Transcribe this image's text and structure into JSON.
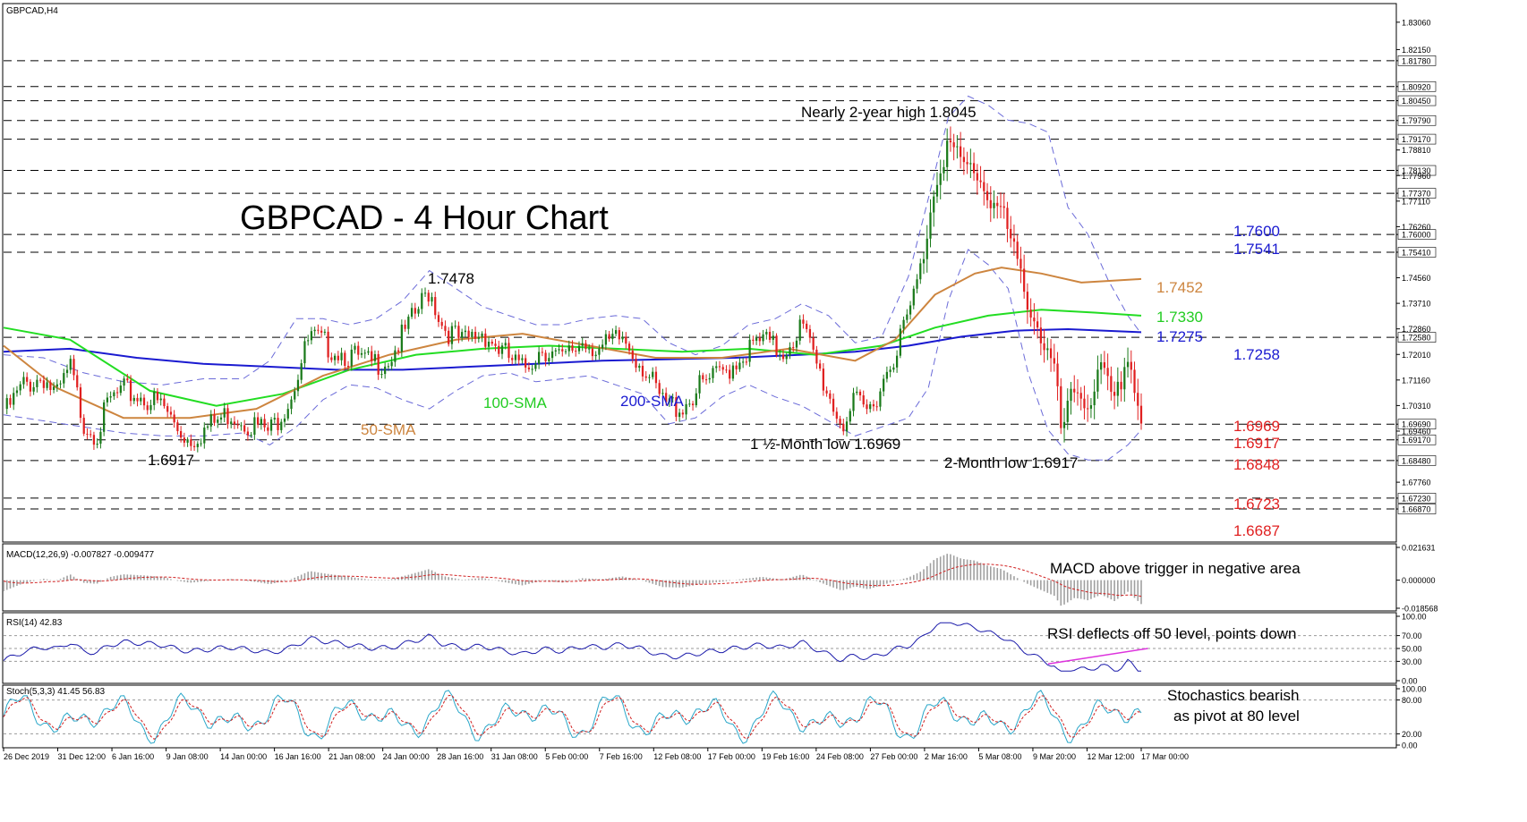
{
  "colors": {
    "bull": "#1a7a1a",
    "bear": "#e02020",
    "sma50": "#cd853f",
    "sma100": "#22dd22",
    "sma200": "#1a1ad0",
    "bands": "#6a6ad8",
    "macd_hist": "#a0a0a0",
    "signal": "#d02020",
    "rsi": "#1a1aaa",
    "rsi_trend": "#dd33dd",
    "stoch_main": "#2aa7c9",
    "stoch_signal": "#d02020",
    "level_blue": "#1a1ad0",
    "level_orange": "#cd853f",
    "level_green": "#22cc22",
    "level_red": "#e02020"
  },
  "chart_data": [
    {
      "type": "candlestick",
      "symbol_label": "GBPCAD,H4",
      "title": "GBPCAD - 4 Hour Chart",
      "ylim": [
        1.658,
        1.8365
      ],
      "y_ticks": [
        "1.83060",
        "1.82150",
        "1.81780",
        "1.80920",
        "1.80450",
        "1.79790",
        "1.79170",
        "1.78810",
        "1.78130",
        "1.77960",
        "1.77370",
        "1.77110",
        "1.76260",
        "1.76000",
        "1.75410",
        "1.74560",
        "1.73710",
        "1.72860",
        "1.72580",
        "1.72010",
        "1.71160",
        "1.70310",
        "1.69690",
        "1.69460",
        "1.69170",
        "1.68480",
        "1.67760",
        "1.67230",
        "1.66870"
      ],
      "highlighted_ticks": [
        "1.81780",
        "1.80920",
        "1.80450",
        "1.79790",
        "1.79170",
        "1.78130",
        "1.77370",
        "1.76000",
        "1.75410",
        "1.72580",
        "1.69690",
        "1.69170",
        "1.68480",
        "1.67230",
        "1.66870"
      ],
      "x_ticks": [
        "26 Dec 2019",
        "31 Dec 12:00",
        "6 Jan 16:00",
        "9 Jan 08:00",
        "14 Jan 00:00",
        "16 Jan 16:00",
        "21 Jan 08:00",
        "24 Jan 00:00",
        "28 Jan 16:00",
        "31 Jan 08:00",
        "5 Feb 00:00",
        "7 Feb 16:00",
        "12 Feb 08:00",
        "17 Feb 00:00",
        "19 Feb 16:00",
        "24 Feb 08:00",
        "27 Feb 00:00",
        "2 Mar 16:00",
        "5 Mar 08:00",
        "9 Mar 20:00",
        "12 Mar 12:00",
        "17 Mar 00:00"
      ],
      "x_range": [
        "26 Dec 2019",
        "19 Mar 2020"
      ],
      "close_path": [
        [
          0,
          1.702
        ],
        [
          3,
          1.712
        ],
        [
          6,
          1.715
        ],
        [
          8,
          1.708
        ],
        [
          10,
          1.718
        ],
        [
          12,
          1.7
        ],
        [
          14,
          1.696
        ],
        [
          16,
          1.707
        ],
        [
          18,
          1.71
        ],
        [
          21,
          1.708
        ],
        [
          24,
          1.705
        ],
        [
          26,
          1.698
        ],
        [
          28,
          1.694
        ],
        [
          31,
          1.6985
        ],
        [
          34,
          1.703
        ],
        [
          37,
          1.6995
        ],
        [
          40,
          1.6965
        ],
        [
          43,
          1.708
        ],
        [
          46,
          1.728
        ],
        [
          49,
          1.725
        ],
        [
          52,
          1.722
        ],
        [
          55,
          1.719
        ],
        [
          58,
          1.721
        ],
        [
          61,
          1.732
        ],
        [
          64,
          1.744
        ],
        [
          66,
          1.732
        ],
        [
          69,
          1.726
        ],
        [
          72,
          1.73
        ],
        [
          75,
          1.723
        ],
        [
          78,
          1.717
        ],
        [
          81,
          1.725
        ],
        [
          84,
          1.72
        ],
        [
          87,
          1.727
        ],
        [
          90,
          1.724
        ],
        [
          93,
          1.728
        ],
        [
          96,
          1.719
        ],
        [
          99,
          1.706
        ],
        [
          102,
          1.705
        ],
        [
          105,
          1.712
        ],
        [
          108,
          1.716
        ],
        [
          111,
          1.722
        ],
        [
          114,
          1.727
        ],
        [
          117,
          1.723
        ],
        [
          120,
          1.732
        ],
        [
          122,
          1.72
        ],
        [
          124,
          1.709
        ],
        [
          126,
          1.699
        ],
        [
          128,
          1.706
        ],
        [
          130,
          1.703
        ],
        [
          133,
          1.718
        ],
        [
          136,
          1.735
        ],
        [
          138,
          1.752
        ],
        [
          140,
          1.78
        ],
        [
          142,
          1.793
        ],
        [
          144,
          1.785
        ],
        [
          146,
          1.784
        ],
        [
          148,
          1.775
        ],
        [
          150,
          1.77
        ],
        [
          152,
          1.755
        ],
        [
          154,
          1.74
        ],
        [
          156,
          1.728
        ],
        [
          158,
          1.716
        ],
        [
          159,
          1.696
        ],
        [
          161,
          1.711
        ],
        [
          163,
          1.706
        ],
        [
          165,
          1.717
        ],
        [
          167,
          1.705
        ],
        [
          169,
          1.723
        ],
        [
          171,
          1.7
        ]
      ],
      "sma50": [
        [
          0,
          1.723
        ],
        [
          8,
          1.709
        ],
        [
          18,
          1.699
        ],
        [
          28,
          1.699
        ],
        [
          38,
          1.702
        ],
        [
          48,
          1.713
        ],
        [
          58,
          1.72
        ],
        [
          68,
          1.725
        ],
        [
          78,
          1.727
        ],
        [
          88,
          1.723
        ],
        [
          98,
          1.719
        ],
        [
          108,
          1.719
        ],
        [
          118,
          1.722
        ],
        [
          128,
          1.718
        ],
        [
          134,
          1.725
        ],
        [
          140,
          1.74
        ],
        [
          146,
          1.747
        ],
        [
          150,
          1.749
        ],
        [
          156,
          1.747
        ],
        [
          162,
          1.744
        ],
        [
          171,
          1.7452
        ]
      ],
      "sma100": [
        [
          0,
          1.729
        ],
        [
          10,
          1.725
        ],
        [
          22,
          1.708
        ],
        [
          32,
          1.703
        ],
        [
          42,
          1.707
        ],
        [
          52,
          1.715
        ],
        [
          62,
          1.72
        ],
        [
          72,
          1.722
        ],
        [
          82,
          1.723
        ],
        [
          92,
          1.722
        ],
        [
          102,
          1.721
        ],
        [
          112,
          1.722
        ],
        [
          122,
          1.72
        ],
        [
          132,
          1.723
        ],
        [
          140,
          1.729
        ],
        [
          148,
          1.733
        ],
        [
          156,
          1.735
        ],
        [
          164,
          1.734
        ],
        [
          171,
          1.733
        ]
      ],
      "sma200": [
        [
          0,
          1.721
        ],
        [
          10,
          1.722
        ],
        [
          20,
          1.719
        ],
        [
          30,
          1.717
        ],
        [
          40,
          1.716
        ],
        [
          50,
          1.715
        ],
        [
          60,
          1.715
        ],
        [
          70,
          1.716
        ],
        [
          80,
          1.717
        ],
        [
          90,
          1.718
        ],
        [
          100,
          1.7185
        ],
        [
          110,
          1.719
        ],
        [
          120,
          1.72
        ],
        [
          128,
          1.721
        ],
        [
          136,
          1.723
        ],
        [
          144,
          1.726
        ],
        [
          152,
          1.728
        ],
        [
          160,
          1.7285
        ],
        [
          171,
          1.7275
        ]
      ],
      "band_upper": [
        [
          0,
          1.72
        ],
        [
          6,
          1.719
        ],
        [
          12,
          1.714
        ],
        [
          18,
          1.711
        ],
        [
          24,
          1.71
        ],
        [
          30,
          1.712
        ],
        [
          36,
          1.712
        ],
        [
          40,
          1.718
        ],
        [
          44,
          1.732
        ],
        [
          48,
          1.732
        ],
        [
          52,
          1.73
        ],
        [
          56,
          1.732
        ],
        [
          60,
          1.738
        ],
        [
          64,
          1.748
        ],
        [
          68,
          1.742
        ],
        [
          72,
          1.736
        ],
        [
          76,
          1.733
        ],
        [
          80,
          1.73
        ],
        [
          84,
          1.73
        ],
        [
          88,
          1.732
        ],
        [
          92,
          1.733
        ],
        [
          96,
          1.732
        ],
        [
          100,
          1.724
        ],
        [
          104,
          1.72
        ],
        [
          108,
          1.723
        ],
        [
          112,
          1.73
        ],
        [
          116,
          1.732
        ],
        [
          120,
          1.737
        ],
        [
          124,
          1.733
        ],
        [
          128,
          1.724
        ],
        [
          132,
          1.726
        ],
        [
          136,
          1.746
        ],
        [
          139,
          1.772
        ],
        [
          142,
          1.799
        ],
        [
          145,
          1.806
        ],
        [
          148,
          1.803
        ],
        [
          151,
          1.798
        ],
        [
          154,
          1.797
        ],
        [
          157,
          1.794
        ],
        [
          160,
          1.769
        ],
        [
          163,
          1.76
        ],
        [
          166,
          1.745
        ],
        [
          169,
          1.733
        ],
        [
          171,
          1.727
        ]
      ],
      "band_lower": [
        [
          0,
          1.7
        ],
        [
          6,
          1.698
        ],
        [
          12,
          1.696
        ],
        [
          18,
          1.694
        ],
        [
          24,
          1.693
        ],
        [
          30,
          1.693
        ],
        [
          36,
          1.694
        ],
        [
          40,
          1.69
        ],
        [
          44,
          1.696
        ],
        [
          48,
          1.705
        ],
        [
          52,
          1.71
        ],
        [
          56,
          1.709
        ],
        [
          60,
          1.705
        ],
        [
          64,
          1.702
        ],
        [
          68,
          1.708
        ],
        [
          72,
          1.713
        ],
        [
          76,
          1.714
        ],
        [
          80,
          1.711
        ],
        [
          84,
          1.712
        ],
        [
          88,
          1.713
        ],
        [
          92,
          1.71
        ],
        [
          96,
          1.707
        ],
        [
          100,
          1.697
        ],
        [
          104,
          1.699
        ],
        [
          108,
          1.706
        ],
        [
          112,
          1.71
        ],
        [
          116,
          1.706
        ],
        [
          120,
          1.703
        ],
        [
          124,
          1.698
        ],
        [
          128,
          1.693
        ],
        [
          132,
          1.696
        ],
        [
          136,
          1.699
        ],
        [
          139,
          1.709
        ],
        [
          142,
          1.738
        ],
        [
          145,
          1.755
        ],
        [
          148,
          1.75
        ],
        [
          151,
          1.742
        ],
        [
          154,
          1.714
        ],
        [
          157,
          1.695
        ],
        [
          160,
          1.687
        ],
        [
          163,
          1.685
        ],
        [
          166,
          1.685
        ],
        [
          169,
          1.69
        ],
        [
          171,
          1.695
        ]
      ],
      "levels": [
        {
          "value": 1.76,
          "label": "1.7600",
          "color": "level_blue"
        },
        {
          "value": 1.7541,
          "label": "1.7541",
          "color": "level_blue"
        },
        {
          "value": 1.7452,
          "label": "1.7452",
          "color": "level_orange"
        },
        {
          "value": 1.733,
          "label": "1.7330",
          "color": "level_green"
        },
        {
          "value": 1.7275,
          "label": "1.7275",
          "color": "level_blue"
        },
        {
          "value": 1.7258,
          "label": "1.7258",
          "color": "level_blue"
        },
        {
          "value": 1.6969,
          "label": "1.6969",
          "color": "level_red"
        },
        {
          "value": 1.6917,
          "label": "1.6917",
          "color": "level_red"
        },
        {
          "value": 1.6848,
          "label": "1.6848",
          "color": "level_red"
        },
        {
          "value": 1.6723,
          "label": "1.6723",
          "color": "level_red"
        },
        {
          "value": 1.6687,
          "label": "1.6687",
          "color": "level_red"
        }
      ],
      "dashed_levels": [
        1.8178,
        1.8092,
        1.8045,
        1.7979,
        1.7917,
        1.7813,
        1.7737,
        1.76,
        1.7541,
        1.7258,
        1.6969,
        1.6917,
        1.6848,
        1.6723,
        1.6687
      ],
      "annotations": {
        "high": "Nearly 2-year high 1.8045",
        "p1_7478": "1.7478",
        "p1_6917": "1.6917",
        "low_month_half": "1 ½-Month low 1.6969",
        "low_2month": "2-Month low 1.6917",
        "sma100_label": "100-SMA",
        "sma200_label": "200-SMA",
        "sma50_label": "50-SMA"
      }
    },
    {
      "type": "macd",
      "label": "MACD(12,26,9) -0.007827 -0.009477",
      "ylim": [
        -0.018568,
        0.021631
      ],
      "y_ticks": [
        "0.021631",
        "0.000000",
        "-0.018568"
      ],
      "annotation": "MACD above trigger in negative area"
    },
    {
      "type": "rsi",
      "label": "RSI(14) 42.83",
      "ylim": [
        0,
        100
      ],
      "y_ticks": [
        "100.00",
        "70.00",
        "50.00",
        "30.00",
        "0.00"
      ],
      "annotation": "RSI deflects off 50 level, points down"
    },
    {
      "type": "stochastic",
      "label": "Stoch(5,3,3) 41.45 56.83",
      "ylim": [
        0,
        100
      ],
      "y_ticks": [
        "100.00",
        "80.00",
        "20.00",
        "0.00"
      ],
      "annotation_line1": "Stochastics bearish",
      "annotation_line2": "as pivot at 80 level"
    }
  ]
}
